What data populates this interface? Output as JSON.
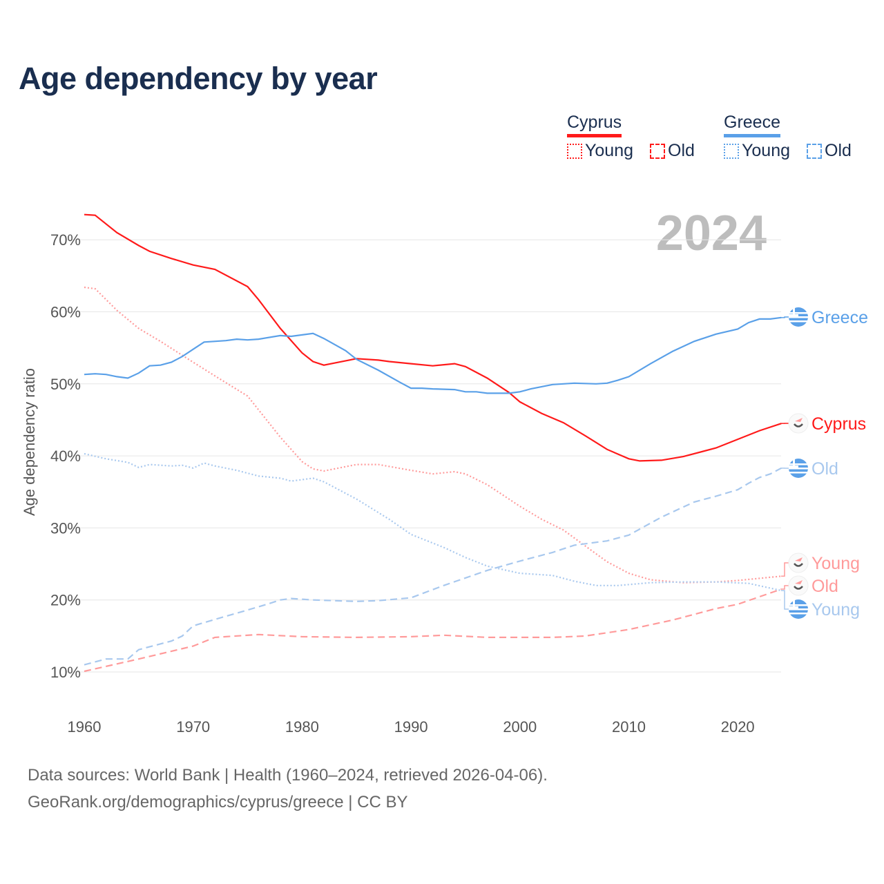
{
  "title": "Age dependency by year",
  "year_watermark": "2024",
  "legend": {
    "countries": [
      {
        "name": "Cyprus",
        "color": "#ff1a1a",
        "light": "#ff9a9a",
        "young": "Young",
        "old": "Old"
      },
      {
        "name": "Greece",
        "color": "#5aa0e8",
        "light": "#a8c8ee",
        "young": "Young",
        "old": "Old"
      }
    ]
  },
  "footer": {
    "line1": "Data sources: World Bank | Health (1960–2024, retrieved 2026-04-06).",
    "line2": "GeoRank.org/demographics/cyprus/greece | CC BY"
  },
  "chart_data": {
    "type": "line",
    "title": "Age dependency by year",
    "xlabel": "",
    "ylabel": "Age dependency ratio",
    "xlim": [
      1960,
      2024
    ],
    "ylim": [
      10,
      70
    ],
    "xticks": [
      "1960",
      "1970",
      "1980",
      "1990",
      "2000",
      "2010",
      "2020"
    ],
    "yticks": [
      "10%",
      "20%",
      "30%",
      "40%",
      "50%",
      "60%",
      "70%"
    ],
    "grid": true,
    "series": [
      {
        "name": "Cyprus",
        "end_label": "Cyprus",
        "style": "solid",
        "color": "#ff1a1a",
        "x": [
          1960,
          1961,
          1963,
          1965,
          1966,
          1968,
          1970,
          1972,
          1975,
          1976,
          1978,
          1980,
          1981,
          1982,
          1984,
          1985,
          1987,
          1988,
          1990,
          1992,
          1994,
          1995,
          1997,
          1999,
          2000,
          2002,
          2004,
          2006,
          2008,
          2010,
          2011,
          2013,
          2015,
          2018,
          2020,
          2022,
          2024
        ],
        "y": [
          73.5,
          73.4,
          71.0,
          69.2,
          68.4,
          67.4,
          66.5,
          65.9,
          63.5,
          61.7,
          57.7,
          54.3,
          53.1,
          52.6,
          53.2,
          53.5,
          53.3,
          53.1,
          52.8,
          52.5,
          52.8,
          52.4,
          50.8,
          48.8,
          47.5,
          45.9,
          44.6,
          42.8,
          40.9,
          39.6,
          39.3,
          39.4,
          39.9,
          41.1,
          42.3,
          43.5,
          44.5
        ]
      },
      {
        "name": "Cyprus Young",
        "end_label": "Young",
        "style": "dotted",
        "color": "#ff9a9a",
        "x": [
          1960,
          1961,
          1963,
          1965,
          1967,
          1970,
          1972,
          1975,
          1976,
          1978,
          1980,
          1981,
          1982,
          1984,
          1985,
          1987,
          1990,
          1992,
          1994,
          1995,
          1997,
          2000,
          2002,
          2004,
          2006,
          2008,
          2010,
          2012,
          2015,
          2018,
          2020,
          2024
        ],
        "y": [
          63.4,
          63.2,
          60.2,
          57.7,
          55.9,
          53.0,
          51.1,
          48.3,
          46.4,
          42.6,
          39.2,
          38.2,
          37.9,
          38.5,
          38.8,
          38.8,
          38.0,
          37.5,
          37.8,
          37.5,
          36.0,
          33.0,
          31.2,
          29.7,
          27.5,
          25.3,
          23.7,
          22.8,
          22.4,
          22.5,
          22.7,
          23.3
        ]
      },
      {
        "name": "Cyprus Old",
        "end_label": "Old",
        "style": "dashed",
        "color": "#ff9a9a",
        "x": [
          1960,
          1965,
          1970,
          1972,
          1976,
          1980,
          1985,
          1990,
          1993,
          1997,
          2003,
          2006,
          2010,
          2014,
          2018,
          2020,
          2024
        ],
        "y": [
          10.1,
          11.8,
          13.6,
          14.8,
          15.2,
          14.9,
          14.8,
          14.9,
          15.1,
          14.8,
          14.8,
          15.0,
          15.9,
          17.2,
          18.8,
          19.4,
          21.5
        ]
      },
      {
        "name": "Greece",
        "end_label": "Greece",
        "style": "solid",
        "color": "#5aa0e8",
        "x": [
          1960,
          1961,
          1962,
          1963,
          1964,
          1965,
          1966,
          1967,
          1968,
          1969,
          1970,
          1971,
          1973,
          1974,
          1975,
          1976,
          1978,
          1979,
          1981,
          1982,
          1984,
          1985,
          1987,
          1989,
          1990,
          1991,
          1992,
          1994,
          1995,
          1996,
          1997,
          1999,
          2000,
          2001,
          2003,
          2005,
          2007,
          2008,
          2009,
          2010,
          2012,
          2014,
          2016,
          2018,
          2020,
          2021,
          2022,
          2023,
          2024
        ],
        "y": [
          51.3,
          51.4,
          51.3,
          51.0,
          50.8,
          51.5,
          52.5,
          52.6,
          53.0,
          53.8,
          54.8,
          55.8,
          56.0,
          56.2,
          56.1,
          56.2,
          56.7,
          56.6,
          57.0,
          56.3,
          54.6,
          53.4,
          51.9,
          50.2,
          49.4,
          49.4,
          49.3,
          49.2,
          48.9,
          48.9,
          48.7,
          48.7,
          48.9,
          49.3,
          49.9,
          50.1,
          50.0,
          50.1,
          50.5,
          51.0,
          52.8,
          54.5,
          55.9,
          56.9,
          57.6,
          58.5,
          59.0,
          59.0,
          59.2
        ]
      },
      {
        "name": "Greece Young",
        "end_label": "Young",
        "style": "dotted",
        "color": "#a8c8ee",
        "x": [
          1960,
          1962,
          1964,
          1965,
          1966,
          1968,
          1969,
          1970,
          1971,
          1972,
          1974,
          1976,
          1978,
          1979,
          1981,
          1982,
          1985,
          1988,
          1990,
          1993,
          1995,
          1997,
          2000,
          2003,
          2005,
          2007,
          2009,
          2012,
          2015,
          2018,
          2021,
          2024
        ],
        "y": [
          40.3,
          39.6,
          39.1,
          38.4,
          38.8,
          38.6,
          38.7,
          38.3,
          39.0,
          38.6,
          38.0,
          37.2,
          36.9,
          36.5,
          36.9,
          36.4,
          34.0,
          31.2,
          29.1,
          27.3,
          25.9,
          24.7,
          23.7,
          23.4,
          22.6,
          22.0,
          22.0,
          22.4,
          22.5,
          22.5,
          22.3,
          21.3
        ]
      },
      {
        "name": "Greece Old",
        "end_label": "Old",
        "style": "dashed",
        "color": "#a8c8ee",
        "x": [
          1960,
          1962,
          1964,
          1965,
          1968,
          1969,
          1970,
          1972,
          1975,
          1977,
          1978,
          1979,
          1981,
          1985,
          1987,
          1990,
          1993,
          1997,
          2000,
          2003,
          2005,
          2008,
          2010,
          2013,
          2016,
          2018,
          2020,
          2021,
          2022,
          2023,
          2024
        ],
        "y": [
          11.0,
          11.8,
          11.8,
          13.1,
          14.3,
          15.0,
          16.4,
          17.3,
          18.6,
          19.5,
          20.0,
          20.2,
          20.0,
          19.8,
          19.9,
          20.3,
          22.0,
          24.1,
          25.4,
          26.6,
          27.6,
          28.2,
          29.0,
          31.5,
          33.6,
          34.4,
          35.3,
          36.2,
          37.0,
          37.5,
          38.3
        ]
      }
    ]
  }
}
